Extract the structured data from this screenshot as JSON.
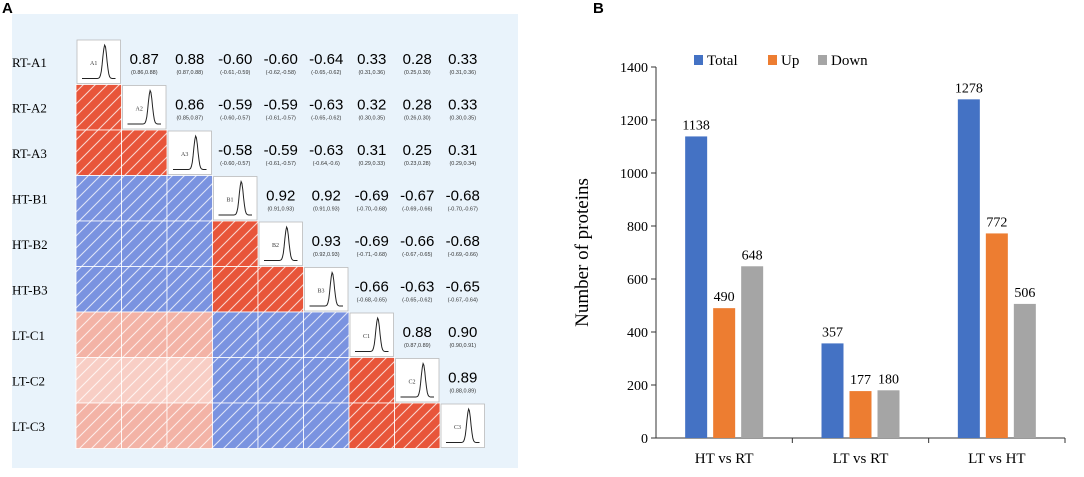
{
  "panelA": {
    "label": "A",
    "rows": [
      "RT-A1",
      "RT-A2",
      "RT-A3",
      "HT-B1",
      "HT-B2",
      "HT-B3",
      "LT-C1",
      "LT-C2",
      "LT-C3"
    ],
    "diag_labels": [
      "A1",
      "A2",
      "A3",
      "B1",
      "B2",
      "B3",
      "C1",
      "C2",
      "C3"
    ],
    "upper": [
      [
        null,
        "0.87",
        "0.88",
        "-0.60",
        "-0.60",
        "-0.64",
        "0.33",
        "0.28",
        "0.33"
      ],
      [
        null,
        null,
        "0.86",
        "-0.59",
        "-0.59",
        "-0.63",
        "0.32",
        "0.28",
        "0.33"
      ],
      [
        null,
        null,
        null,
        "-0.58",
        "-0.59",
        "-0.63",
        "0.31",
        "0.25",
        "0.31"
      ],
      [
        null,
        null,
        null,
        null,
        "0.92",
        "0.92",
        "-0.69",
        "-0.67",
        "-0.68"
      ],
      [
        null,
        null,
        null,
        null,
        null,
        "0.93",
        "-0.69",
        "-0.66",
        "-0.68"
      ],
      [
        null,
        null,
        null,
        null,
        null,
        null,
        "-0.66",
        "-0.63",
        "-0.65"
      ],
      [
        null,
        null,
        null,
        null,
        null,
        null,
        null,
        "0.88",
        "0.90"
      ],
      [
        null,
        null,
        null,
        null,
        null,
        null,
        null,
        null,
        "0.89"
      ],
      [
        null,
        null,
        null,
        null,
        null,
        null,
        null,
        null,
        null
      ]
    ],
    "ci": [
      [
        null,
        "(0.86,0.88)",
        "(0.87,0.88)",
        "(-0.61,-0.59)",
        "(-0.62,-0.58)",
        "(-0.65,-0.62)",
        "(0.31,0.36)",
        "(0.25,0.30)",
        "(0.31,0.36)"
      ],
      [
        null,
        null,
        "(0.85,0.87)",
        "(-0.60,-0.57)",
        "(-0.61,-0.57)",
        "(-0.65,-0.62)",
        "(0.30,0.35)",
        "(0.26,0.30)",
        "(0.30,0.35)"
      ],
      [
        null,
        null,
        null,
        "(-0.60,-0.57)",
        "(-0.61,-0.57)",
        "(-0.64,-0.6)",
        "(0.29,0.33)",
        "(0.23,0.28)",
        "(0.29,0.34)"
      ],
      [
        null,
        null,
        null,
        null,
        "(0.91,0.93)",
        "(0.91,0.93)",
        "(-0.70,-0.68)",
        "(-0.69,-0.66)",
        "(-0.70,-0.67)"
      ],
      [
        null,
        null,
        null,
        null,
        null,
        "(0.92,0.93)",
        "(-0.71,-0.68)",
        "(-0.67,-0.65)",
        "(-0.69,-0.66)"
      ],
      [
        null,
        null,
        null,
        null,
        null,
        null,
        "(-0.68,-0.65)",
        "(-0.65,-0.62)",
        "(-0.67,-0.64)"
      ],
      [
        null,
        null,
        null,
        null,
        null,
        null,
        null,
        "(0.87,0.89)",
        "(0.90,0.91)"
      ],
      [
        null,
        null,
        null,
        null,
        null,
        null,
        null,
        null,
        "(0.88,0.89)"
      ],
      [
        null,
        null,
        null,
        null,
        null,
        null,
        null,
        null,
        null
      ]
    ],
    "colors": {
      "red": "#e8553a",
      "blue": "#7a93e0",
      "pink": "#f3b3a6",
      "light_pink": "#f8cec5",
      "frame": "#e9f3fb"
    }
  },
  "chart_data": {
    "type": "bar",
    "label": "B",
    "categories": [
      "HT vs RT",
      "LT vs RT",
      "LT vs HT"
    ],
    "series": [
      {
        "name": "Total",
        "values": [
          1138,
          357,
          1278
        ],
        "color": "#4472c4"
      },
      {
        "name": "Up",
        "values": [
          490,
          177,
          772
        ],
        "color": "#ed7d31"
      },
      {
        "name": "Down",
        "values": [
          648,
          180,
          506
        ],
        "color": "#a5a5a5"
      }
    ],
    "ylabel": "Number of proteins",
    "xlabel": "",
    "ylim": [
      0,
      1400
    ],
    "yticks": [
      0,
      200,
      400,
      600,
      800,
      1000,
      1200,
      1400
    ],
    "legend_position": "top-left"
  }
}
